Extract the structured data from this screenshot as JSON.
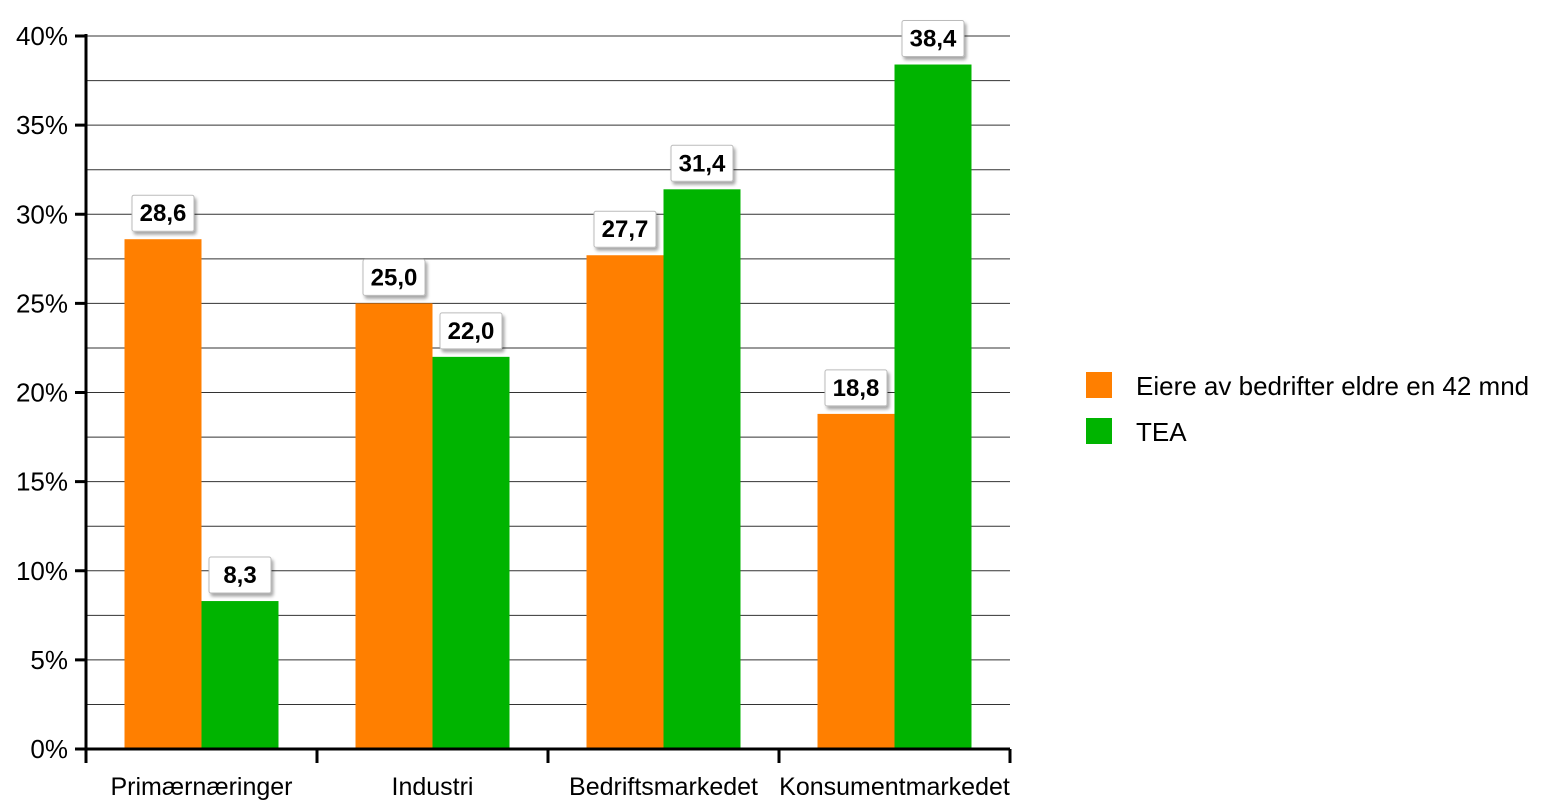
{
  "chart_data": {
    "type": "bar",
    "categories": [
      "Primærnæringer",
      "Industri",
      "Bedriftsmarkedet",
      "Konsumentmarkedet"
    ],
    "series": [
      {
        "name": "Eiere av bedrifter eldre en 42 mnd",
        "color": "#ff7f00",
        "values": [
          28.6,
          25.0,
          27.7,
          18.8
        ],
        "labels": [
          "28,6",
          "25,0",
          "27,7",
          "18,8"
        ]
      },
      {
        "name": "TEA",
        "color": "#00b400",
        "values": [
          8.3,
          22.0,
          31.4,
          38.4
        ],
        "labels": [
          "8,3",
          "22,0",
          "31,4",
          "38,4"
        ]
      }
    ],
    "yticks": [
      0,
      5,
      10,
      15,
      20,
      25,
      30,
      35,
      40
    ],
    "ytick_labels": [
      "0%",
      "5%",
      "10%",
      "15%",
      "20%",
      "25%",
      "30%",
      "35%",
      "40%"
    ],
    "ylim": [
      0,
      40
    ],
    "minor_grid_step": 2.5,
    "grid": true,
    "legend_position": "right",
    "title": "",
    "xlabel": "",
    "ylabel": ""
  }
}
